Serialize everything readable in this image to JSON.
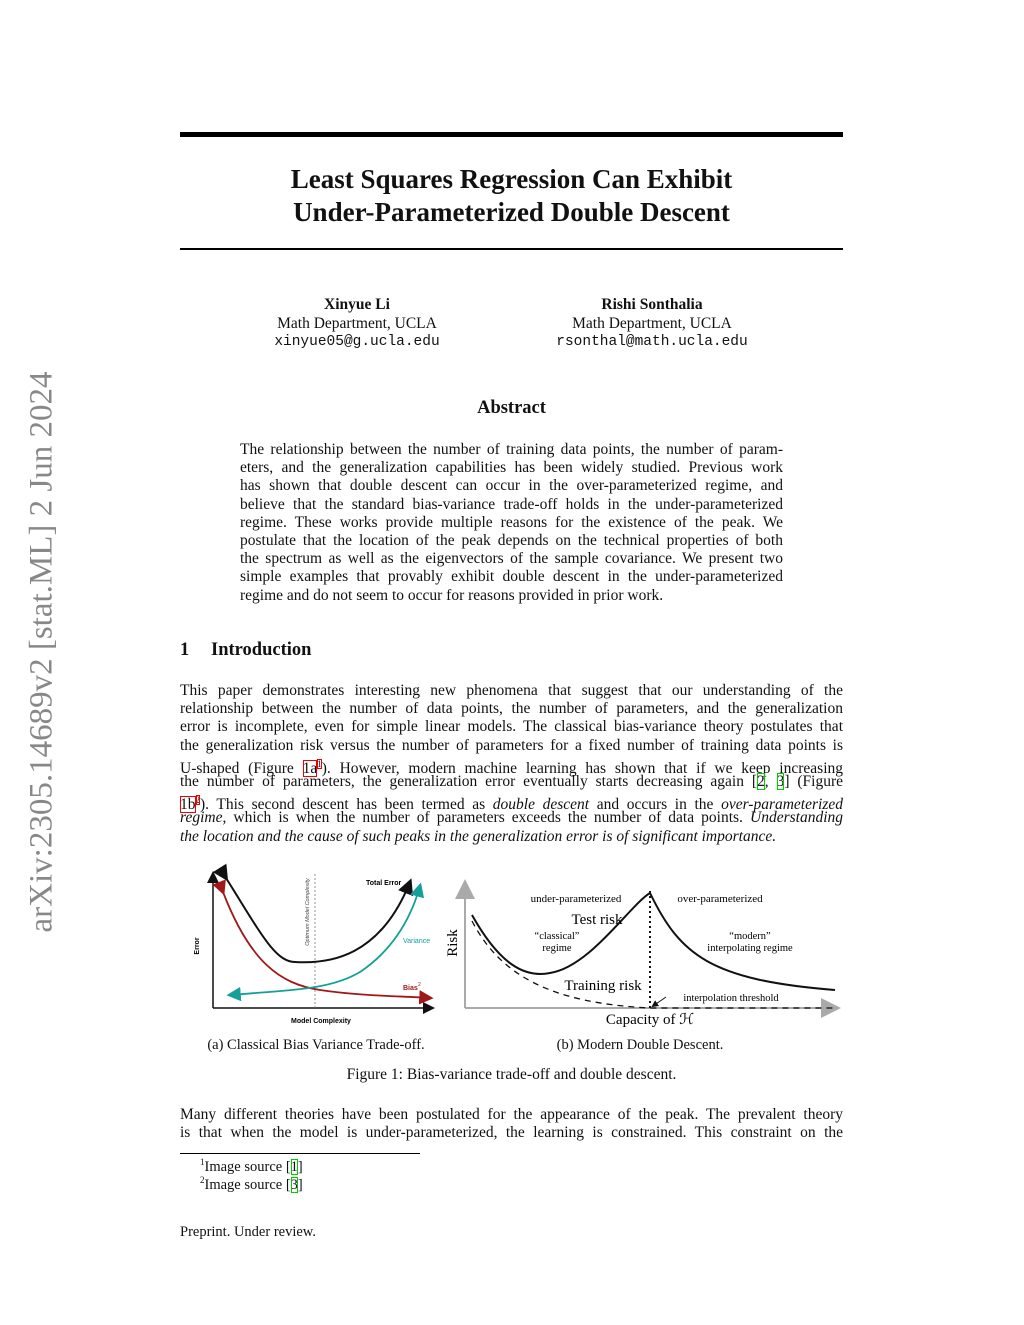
{
  "sidebar_stamp": "arXiv:2305.14689v2  [stat.ML]  2 Jun 2024",
  "title": [
    "Least Squares Regression Can Exhibit",
    "Under-Parameterized Double Descent"
  ],
  "authors": [
    {
      "name": "Xinyue Li",
      "affiliation": "Math Department, UCLA",
      "email": "xinyue05@g.ucla.edu"
    },
    {
      "name": "Rishi Sonthalia",
      "affiliation": "Math Department, UCLA",
      "email": "rsonthal@math.ucla.edu"
    }
  ],
  "abstract": {
    "heading": "Abstract",
    "lines": [
      "The relationship between the number of training data points, the number of param-",
      "eters, and the generalization capabilities has been widely studied. Previous work",
      "has shown that double descent can occur in the over-parameterized regime, and",
      "believe that the standard bias-variance trade-off holds in the under-parameterized",
      "regime. These works provide multiple reasons for the existence of the peak. We",
      "postulate that the location of the peak depends on the technical properties of both",
      "the spectrum as well as the eigenvectors of the sample covariance. We present two",
      "simple examples that provably exhibit double descent in the under-parameterized",
      "regime and do not seem to occur for reasons provided in prior work."
    ]
  },
  "introduction": {
    "number": "1",
    "heading": "Introduction",
    "paragraph1": [
      [
        {
          "t": "This paper demonstrates interesting new phenomena that suggest that our understanding of the"
        }
      ],
      [
        {
          "t": "relationship between the number of data points, the number of parameters, and the generalization"
        }
      ],
      [
        {
          "t": "error is incomplete, even for simple linear models. The classical bias-variance theory postulates that"
        }
      ],
      [
        {
          "t": "the generalization risk versus the number of parameters for a fixed number of training data points is"
        }
      ],
      [
        {
          "t": "U-shaped (Figure "
        },
        {
          "t": "1a",
          "s": "r"
        },
        {
          "t": "1",
          "s": "rsup"
        },
        {
          "t": "). However, modern machine learning has shown that if we keep increasing"
        }
      ],
      [
        {
          "t": "the number of parameters, the generalization error eventually starts decreasing again ["
        },
        {
          "t": "2",
          "s": "g"
        },
        {
          "t": ", "
        },
        {
          "t": "3",
          "s": "g"
        },
        {
          "t": "] (Figure"
        }
      ],
      [
        {
          "t": "1b",
          "s": "r"
        },
        {
          "t": "2",
          "s": "rsup"
        },
        {
          "t": "). This second descent has been termed as "
        },
        {
          "t": "double descent",
          "s": "i"
        },
        {
          "t": " and occurs in the "
        },
        {
          "t": "over-parameterized",
          "s": "i"
        }
      ],
      [
        {
          "t": "regime",
          "s": "i"
        },
        {
          "t": ", which is when the number of parameters exceeds the number of data points. "
        },
        {
          "t": "Understanding",
          "s": "i"
        }
      ],
      [
        {
          "t": "the location and the cause of such peaks in the generalization error is of significant importance.",
          "s": "i"
        }
      ]
    ],
    "paragraph2": [
      [
        {
          "t": "Many different theories have been postulated for the appearance of the peak. The prevalent theory"
        }
      ],
      [
        {
          "t": "is that when the model is under-parameterized, the learning is constrained. This constraint on the"
        }
      ]
    ]
  },
  "figure": {
    "panel_a": {
      "caption": "(a) Classical Bias Variance Trade-off.",
      "labels": {
        "total_error": "Total Error",
        "variance": "Variance",
        "bias": "Bias",
        "bias_sup": "2",
        "y_axis": "Error",
        "x_axis": "Model Complexity",
        "optimum": "Optimum Model Complexity"
      },
      "colors": {
        "total": "#111111",
        "variance": "#13a09a",
        "bias": "#a01818"
      }
    },
    "panel_b": {
      "caption": "(b) Modern Double Descent.",
      "labels": {
        "under": "under-parameterized",
        "over": "over-parameterized",
        "test_risk": "Test risk",
        "classical_1": "“classical”",
        "classical_2": "regime",
        "modern_1": "“modern”",
        "modern_2": "interpolating regime",
        "training_risk": "Training risk",
        "threshold": "interpolation threshold",
        "x_axis": "Capacity of ℋ",
        "y_axis": "Risk"
      }
    },
    "caption": "Figure 1: Bias-variance trade-off and double descent."
  },
  "footnotes": [
    {
      "num": "1",
      "text": "Image source [",
      "ref": "1",
      "end": "]"
    },
    {
      "num": "2",
      "text": "Image source [",
      "ref": "3",
      "end": "]"
    }
  ],
  "footer": "Preprint. Under review."
}
